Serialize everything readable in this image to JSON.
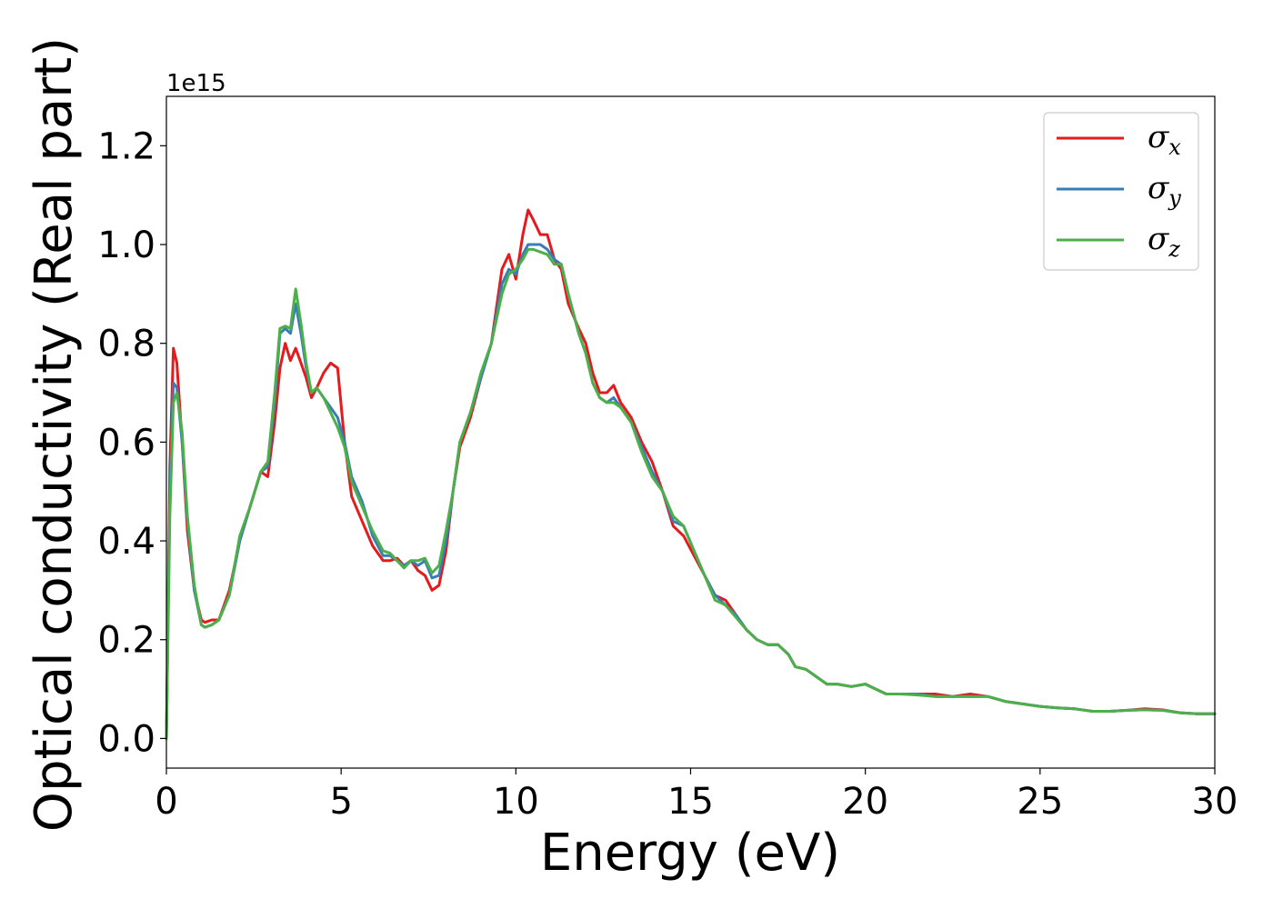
{
  "chart_data": {
    "type": "line",
    "xlabel": "Energy (eV)",
    "ylabel": "Optical conductivity (Real part)",
    "y_offset_label": "1e15",
    "xlim": [
      0,
      30
    ],
    "ylim": [
      -0.06,
      1.3
    ],
    "x_ticks": [
      0,
      5,
      10,
      15,
      20,
      25,
      30
    ],
    "x_tick_labels": [
      "0",
      "5",
      "10",
      "15",
      "20",
      "25",
      "30"
    ],
    "y_ticks": [
      0.0,
      0.2,
      0.4,
      0.6,
      0.8,
      1.0,
      1.2
    ],
    "y_tick_labels": [
      "0.0",
      "0.2",
      "0.4",
      "0.6",
      "0.8",
      "1.0",
      "1.2"
    ],
    "grid": false,
    "legend_position": "top-right",
    "series": [
      {
        "name": "σ",
        "subscript": "x",
        "color": "#e41a1c",
        "x": [
          0,
          0.1,
          0.2,
          0.3,
          0.45,
          0.6,
          0.8,
          1.0,
          1.1,
          1.3,
          1.5,
          1.8,
          2.1,
          2.4,
          2.7,
          2.9,
          3.1,
          3.25,
          3.4,
          3.55,
          3.7,
          3.85,
          4.0,
          4.15,
          4.3,
          4.5,
          4.7,
          4.9,
          5.1,
          5.3,
          5.6,
          5.9,
          6.2,
          6.4,
          6.6,
          6.8,
          7.0,
          7.2,
          7.4,
          7.6,
          7.8,
          8.0,
          8.2,
          8.4,
          8.7,
          9.0,
          9.3,
          9.6,
          9.8,
          10.0,
          10.2,
          10.35,
          10.5,
          10.7,
          10.9,
          11.1,
          11.3,
          11.5,
          11.8,
          12.0,
          12.2,
          12.4,
          12.6,
          12.8,
          13.0,
          13.3,
          13.6,
          13.9,
          14.2,
          14.5,
          14.8,
          15.1,
          15.4,
          15.7,
          16.0,
          16.3,
          16.6,
          16.9,
          17.2,
          17.5,
          17.8,
          18.0,
          18.3,
          18.6,
          18.9,
          19.2,
          19.6,
          20.0,
          20.3,
          20.6,
          21.0,
          21.5,
          22.0,
          22.5,
          23.0,
          23.5,
          24.0,
          24.5,
          25.0,
          25.5,
          26.0,
          26.5,
          27.0,
          27.5,
          28.0,
          28.5,
          29.0,
          29.5,
          30.0
        ],
        "y": [
          0.0,
          0.55,
          0.79,
          0.76,
          0.6,
          0.42,
          0.3,
          0.24,
          0.235,
          0.24,
          0.24,
          0.3,
          0.4,
          0.47,
          0.54,
          0.53,
          0.64,
          0.75,
          0.8,
          0.765,
          0.79,
          0.76,
          0.73,
          0.69,
          0.71,
          0.74,
          0.76,
          0.75,
          0.6,
          0.49,
          0.44,
          0.39,
          0.36,
          0.36,
          0.365,
          0.35,
          0.36,
          0.34,
          0.33,
          0.3,
          0.31,
          0.38,
          0.5,
          0.59,
          0.65,
          0.73,
          0.8,
          0.95,
          0.98,
          0.93,
          1.02,
          1.07,
          1.05,
          1.02,
          1.02,
          0.97,
          0.95,
          0.88,
          0.83,
          0.8,
          0.74,
          0.7,
          0.7,
          0.715,
          0.68,
          0.65,
          0.6,
          0.56,
          0.5,
          0.43,
          0.41,
          0.37,
          0.33,
          0.29,
          0.28,
          0.25,
          0.22,
          0.2,
          0.19,
          0.19,
          0.17,
          0.145,
          0.14,
          0.125,
          0.11,
          0.11,
          0.105,
          0.11,
          0.1,
          0.09,
          0.09,
          0.09,
          0.09,
          0.085,
          0.09,
          0.085,
          0.075,
          0.07,
          0.065,
          0.062,
          0.06,
          0.055,
          0.055,
          0.057,
          0.06,
          0.058,
          0.052,
          0.05,
          0.05
        ]
      },
      {
        "name": "σ",
        "subscript": "y",
        "color": "#377eb8",
        "x": [
          0,
          0.1,
          0.2,
          0.3,
          0.45,
          0.6,
          0.8,
          1.0,
          1.1,
          1.3,
          1.5,
          1.8,
          2.1,
          2.4,
          2.7,
          2.9,
          3.1,
          3.25,
          3.4,
          3.55,
          3.7,
          3.85,
          4.0,
          4.15,
          4.3,
          4.5,
          4.7,
          4.9,
          5.1,
          5.3,
          5.6,
          5.9,
          6.2,
          6.4,
          6.6,
          6.8,
          7.0,
          7.2,
          7.4,
          7.6,
          7.8,
          8.0,
          8.2,
          8.4,
          8.7,
          9.0,
          9.3,
          9.6,
          9.8,
          10.0,
          10.2,
          10.35,
          10.5,
          10.7,
          10.9,
          11.1,
          11.3,
          11.5,
          11.8,
          12.0,
          12.2,
          12.4,
          12.6,
          12.8,
          13.0,
          13.3,
          13.6,
          13.9,
          14.2,
          14.5,
          14.8,
          15.1,
          15.4,
          15.7,
          16.0,
          16.3,
          16.6,
          16.9,
          17.2,
          17.5,
          17.8,
          18.0,
          18.3,
          18.6,
          18.9,
          19.2,
          19.6,
          20.0,
          20.3,
          20.6,
          21.0,
          21.5,
          22.0,
          22.5,
          23.0,
          23.5,
          24.0,
          24.5,
          25.0,
          25.5,
          26.0,
          26.5,
          27.0,
          27.5,
          28.0,
          28.5,
          29.0,
          29.5,
          30.0
        ],
        "y": [
          0.0,
          0.5,
          0.72,
          0.71,
          0.6,
          0.44,
          0.3,
          0.23,
          0.225,
          0.23,
          0.24,
          0.29,
          0.4,
          0.47,
          0.54,
          0.55,
          0.68,
          0.82,
          0.83,
          0.82,
          0.88,
          0.82,
          0.75,
          0.7,
          0.71,
          0.69,
          0.67,
          0.65,
          0.6,
          0.53,
          0.48,
          0.41,
          0.37,
          0.37,
          0.36,
          0.35,
          0.36,
          0.35,
          0.36,
          0.325,
          0.33,
          0.4,
          0.5,
          0.6,
          0.66,
          0.73,
          0.8,
          0.92,
          0.95,
          0.94,
          0.98,
          1.0,
          1.0,
          1.0,
          0.99,
          0.97,
          0.96,
          0.9,
          0.82,
          0.78,
          0.72,
          0.69,
          0.68,
          0.69,
          0.67,
          0.64,
          0.59,
          0.54,
          0.5,
          0.44,
          0.43,
          0.38,
          0.33,
          0.29,
          0.27,
          0.25,
          0.22,
          0.2,
          0.19,
          0.19,
          0.17,
          0.145,
          0.14,
          0.125,
          0.11,
          0.11,
          0.105,
          0.11,
          0.1,
          0.09,
          0.09,
          0.09,
          0.085,
          0.085,
          0.085,
          0.085,
          0.075,
          0.07,
          0.065,
          0.062,
          0.06,
          0.055,
          0.055,
          0.057,
          0.058,
          0.057,
          0.052,
          0.05,
          0.05
        ]
      },
      {
        "name": "σ",
        "subscript": "z",
        "color": "#4daf4a",
        "x": [
          0,
          0.1,
          0.2,
          0.3,
          0.45,
          0.6,
          0.8,
          1.0,
          1.1,
          1.3,
          1.5,
          1.8,
          2.1,
          2.4,
          2.7,
          2.9,
          3.1,
          3.25,
          3.4,
          3.55,
          3.7,
          3.85,
          4.0,
          4.15,
          4.3,
          4.5,
          4.7,
          4.9,
          5.1,
          5.3,
          5.6,
          5.9,
          6.2,
          6.4,
          6.6,
          6.8,
          7.0,
          7.2,
          7.4,
          7.6,
          7.8,
          8.0,
          8.2,
          8.4,
          8.7,
          9.0,
          9.3,
          9.6,
          9.8,
          10.0,
          10.2,
          10.35,
          10.5,
          10.7,
          10.9,
          11.1,
          11.3,
          11.5,
          11.8,
          12.0,
          12.2,
          12.4,
          12.6,
          12.8,
          13.0,
          13.3,
          13.6,
          13.9,
          14.2,
          14.5,
          14.8,
          15.1,
          15.4,
          15.7,
          16.0,
          16.3,
          16.6,
          16.9,
          17.2,
          17.5,
          17.8,
          18.0,
          18.3,
          18.6,
          18.9,
          19.2,
          19.6,
          20.0,
          20.3,
          20.6,
          21.0,
          21.5,
          22.0,
          22.5,
          23.0,
          23.5,
          24.0,
          24.5,
          25.0,
          25.5,
          26.0,
          26.5,
          27.0,
          27.5,
          28.0,
          28.5,
          29.0,
          29.5,
          30.0
        ],
        "y": [
          0.0,
          0.45,
          0.68,
          0.7,
          0.62,
          0.45,
          0.31,
          0.23,
          0.225,
          0.23,
          0.24,
          0.29,
          0.41,
          0.47,
          0.54,
          0.56,
          0.7,
          0.83,
          0.835,
          0.83,
          0.91,
          0.84,
          0.76,
          0.7,
          0.71,
          0.69,
          0.66,
          0.63,
          0.59,
          0.52,
          0.47,
          0.42,
          0.38,
          0.375,
          0.36,
          0.345,
          0.36,
          0.36,
          0.365,
          0.335,
          0.35,
          0.42,
          0.5,
          0.6,
          0.66,
          0.74,
          0.8,
          0.9,
          0.94,
          0.95,
          0.97,
          0.99,
          0.99,
          0.985,
          0.98,
          0.96,
          0.96,
          0.9,
          0.82,
          0.78,
          0.72,
          0.69,
          0.68,
          0.68,
          0.67,
          0.64,
          0.58,
          0.53,
          0.5,
          0.45,
          0.43,
          0.38,
          0.33,
          0.28,
          0.27,
          0.245,
          0.22,
          0.2,
          0.19,
          0.19,
          0.17,
          0.145,
          0.14,
          0.125,
          0.11,
          0.11,
          0.105,
          0.11,
          0.1,
          0.09,
          0.09,
          0.088,
          0.085,
          0.085,
          0.085,
          0.085,
          0.075,
          0.07,
          0.065,
          0.062,
          0.06,
          0.055,
          0.055,
          0.057,
          0.058,
          0.057,
          0.052,
          0.05,
          0.05
        ]
      }
    ]
  }
}
